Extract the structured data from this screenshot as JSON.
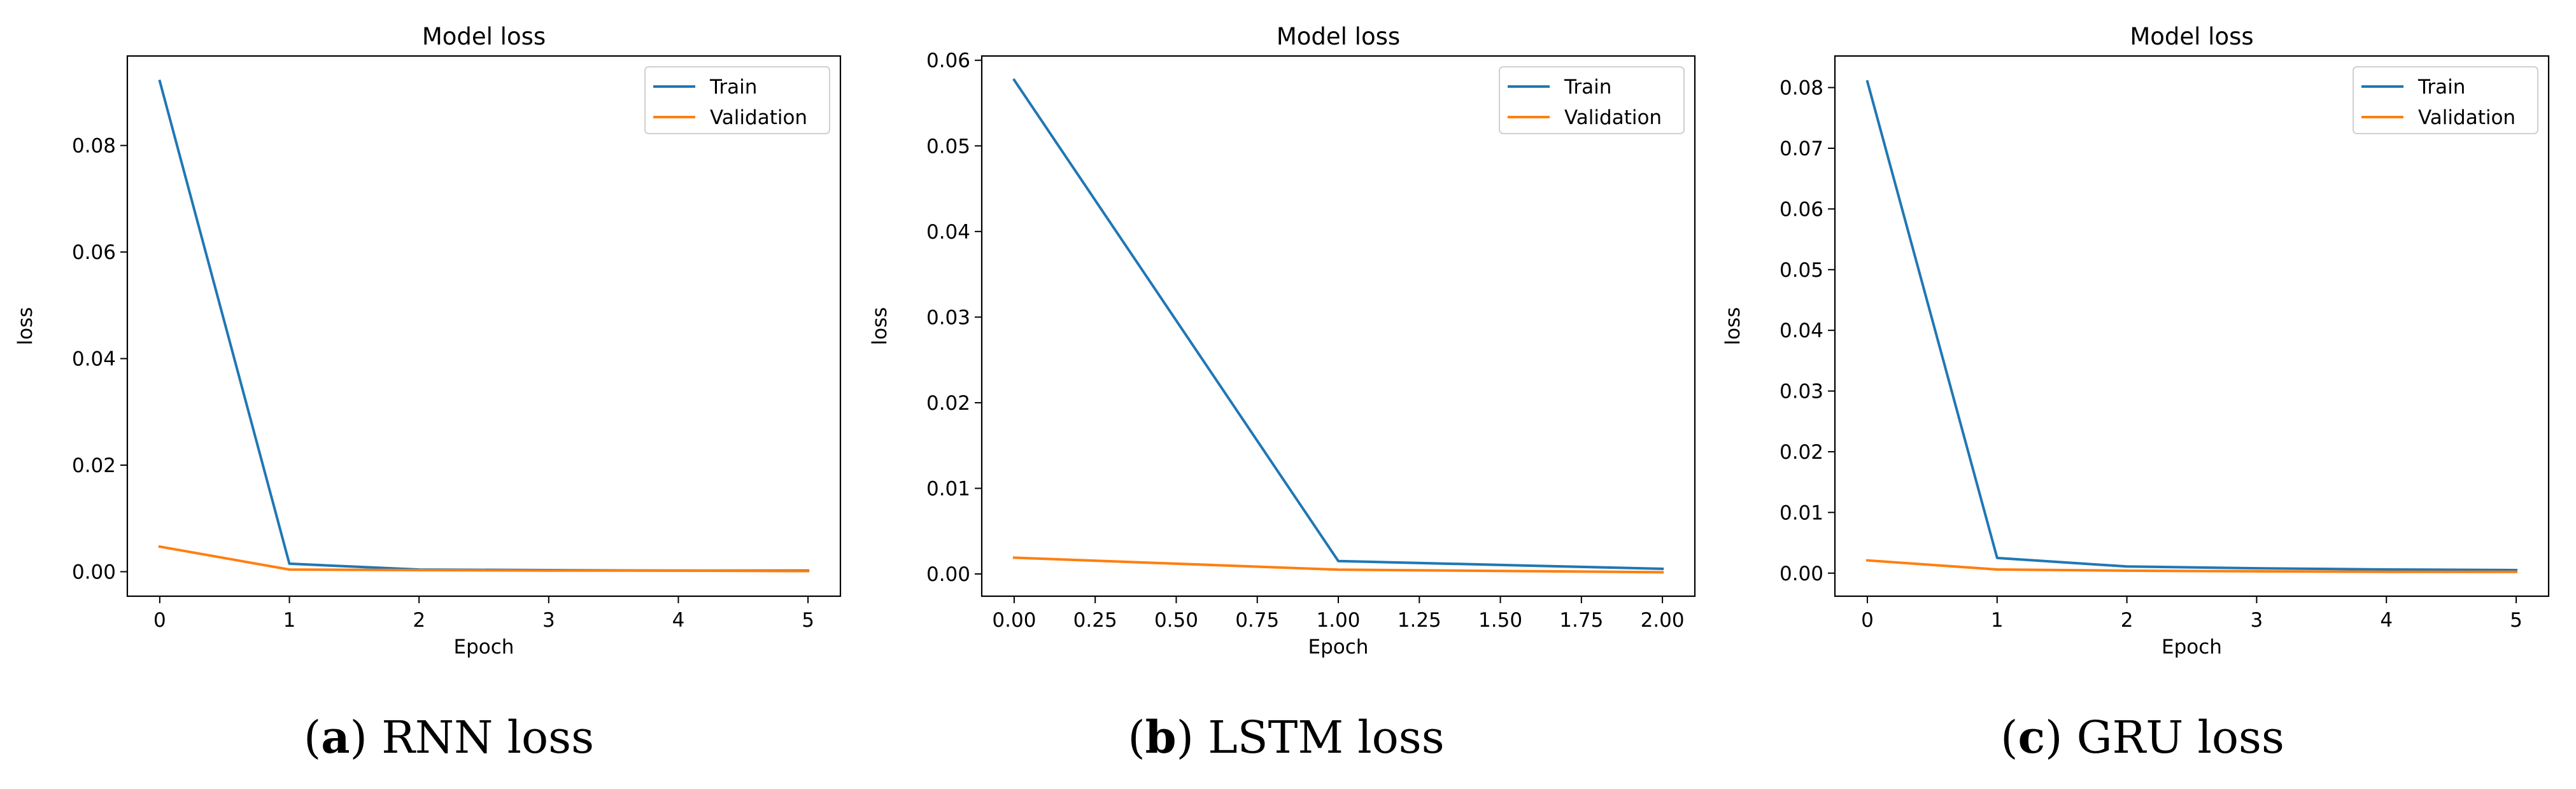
{
  "chart_data": [
    {
      "type": "line",
      "title": "Model loss",
      "xlabel": "Epoch",
      "ylabel": "loss",
      "xlim": [
        -0.25,
        5.25
      ],
      "ylim": [
        -0.0046,
        0.0968
      ],
      "xticks": [
        0,
        1,
        2,
        3,
        4,
        5
      ],
      "xtick_labels": [
        "0",
        "1",
        "2",
        "3",
        "4",
        "5"
      ],
      "yticks": [
        0.0,
        0.02,
        0.04,
        0.06,
        0.08
      ],
      "ytick_labels": [
        "0.00",
        "0.02",
        "0.04",
        "0.06",
        "0.08"
      ],
      "legend": [
        "Train",
        "Validation"
      ],
      "legend_position": "top-right",
      "series": [
        {
          "name": "Train",
          "color": "#1f77b4",
          "x": [
            0,
            1,
            2,
            3,
            4,
            5
          ],
          "values": [
            0.0921,
            0.0015,
            0.0004,
            0.0003,
            0.0002,
            0.0002
          ]
        },
        {
          "name": "Validation",
          "color": "#ff7f0e",
          "x": [
            0,
            1,
            2,
            3,
            4,
            5
          ],
          "values": [
            0.0047,
            0.0004,
            0.0003,
            0.0002,
            0.0002,
            0.0001
          ]
        }
      ],
      "caption": {
        "letter": "a",
        "text": "RNN loss"
      }
    },
    {
      "type": "line",
      "title": "Model loss",
      "xlabel": "Epoch",
      "ylabel": "loss",
      "xlim": [
        -0.1,
        2.1
      ],
      "ylim": [
        -0.0026,
        0.0605
      ],
      "xticks": [
        0,
        0.25,
        0.5,
        0.75,
        1.0,
        1.25,
        1.5,
        1.75,
        2.0
      ],
      "xtick_labels": [
        "0.00",
        "0.25",
        "0.50",
        "0.75",
        "1.00",
        "1.25",
        "1.50",
        "1.75",
        "2.00"
      ],
      "yticks": [
        0.0,
        0.01,
        0.02,
        0.03,
        0.04,
        0.05,
        0.06
      ],
      "ytick_labels": [
        "0.00",
        "0.01",
        "0.02",
        "0.03",
        "0.04",
        "0.05",
        "0.06"
      ],
      "legend": [
        "Train",
        "Validation"
      ],
      "legend_position": "top-right",
      "series": [
        {
          "name": "Train",
          "color": "#1f77b4",
          "x": [
            0,
            1,
            2
          ],
          "values": [
            0.0577,
            0.0015,
            0.0006
          ]
        },
        {
          "name": "Validation",
          "color": "#ff7f0e",
          "x": [
            0,
            1,
            2
          ],
          "values": [
            0.0019,
            0.0005,
            0.0002
          ]
        }
      ],
      "caption": {
        "letter": "b",
        "text": "LSTM loss"
      }
    },
    {
      "type": "line",
      "title": "Model loss",
      "xlabel": "Epoch",
      "ylabel": "loss",
      "xlim": [
        -0.25,
        5.25
      ],
      "ylim": [
        -0.0038,
        0.0852
      ],
      "xticks": [
        0,
        1,
        2,
        3,
        4,
        5
      ],
      "xtick_labels": [
        "0",
        "1",
        "2",
        "3",
        "4",
        "5"
      ],
      "yticks": [
        0.0,
        0.01,
        0.02,
        0.03,
        0.04,
        0.05,
        0.06,
        0.07,
        0.08
      ],
      "ytick_labels": [
        "0.00",
        "0.01",
        "0.02",
        "0.03",
        "0.04",
        "0.05",
        "0.06",
        "0.07",
        "0.08"
      ],
      "legend": [
        "Train",
        "Validation"
      ],
      "legend_position": "top-right",
      "series": [
        {
          "name": "Train",
          "color": "#1f77b4",
          "x": [
            0,
            1,
            2,
            3,
            4,
            5
          ],
          "values": [
            0.081,
            0.0025,
            0.0011,
            0.0008,
            0.0006,
            0.0005
          ]
        },
        {
          "name": "Validation",
          "color": "#ff7f0e",
          "x": [
            0,
            1,
            2,
            3,
            4,
            5
          ],
          "values": [
            0.0021,
            0.0006,
            0.0004,
            0.0003,
            0.0002,
            0.0002
          ]
        }
      ],
      "caption": {
        "letter": "c",
        "text": "GRU loss"
      }
    }
  ]
}
